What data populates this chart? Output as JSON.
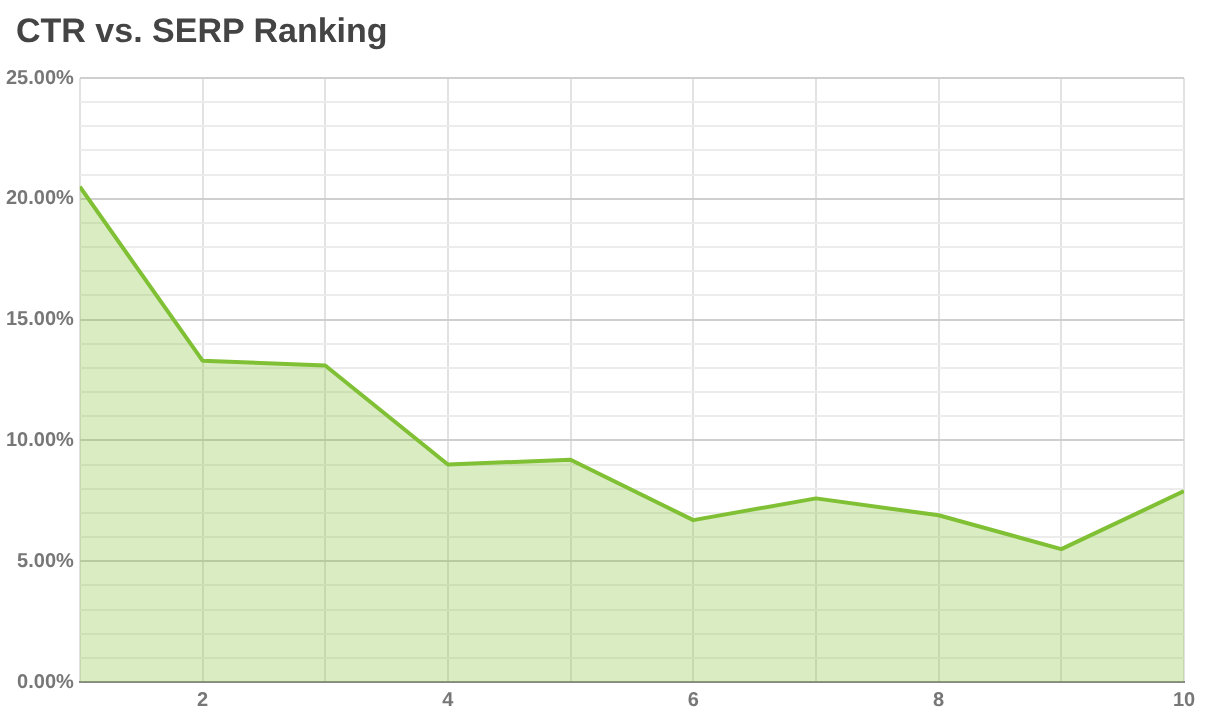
{
  "chart_data": {
    "type": "area",
    "title": "CTR vs. SERP Ranking",
    "x": [
      1,
      2,
      3,
      4,
      5,
      6,
      7,
      8,
      9,
      10
    ],
    "series": [
      {
        "color": "#80c034",
        "values": [
          20.5,
          13.3,
          13.1,
          9.0,
          9.2,
          6.7,
          7.6,
          6.9,
          5.5,
          7.9
        ]
      }
    ],
    "xlim": [
      1,
      10
    ],
    "xticks": [
      {
        "value": 1,
        "label": null
      },
      2,
      {
        "value": 3,
        "label": null
      },
      4,
      {
        "value": 5,
        "label": null
      },
      6,
      {
        "value": 7,
        "label": null
      },
      8,
      {
        "value": 9,
        "label": null
      },
      10
    ],
    "ylim": [
      0,
      25
    ],
    "yticks": [
      {
        "value": 0,
        "label": "0.00%"
      },
      {
        "value": 1,
        "label": null
      },
      {
        "value": 2,
        "label": null
      },
      {
        "value": 3,
        "label": null
      },
      {
        "value": 4,
        "label": null
      },
      {
        "value": 5,
        "label": "5.00%"
      },
      {
        "value": 6,
        "label": null
      },
      {
        "value": 7,
        "label": null
      },
      {
        "value": 8,
        "label": null
      },
      {
        "value": 9,
        "label": null
      },
      {
        "value": 10,
        "label": "10.00%"
      },
      {
        "value": 11,
        "label": null
      },
      {
        "value": 12,
        "label": null
      },
      {
        "value": 13,
        "label": null
      },
      {
        "value": 14,
        "label": null
      },
      {
        "value": 15,
        "label": "15.00%"
      },
      {
        "value": 16,
        "label": null
      },
      {
        "value": 17,
        "label": null
      },
      {
        "value": 18,
        "label": null
      },
      {
        "value": 19,
        "label": null
      },
      {
        "value": 20,
        "label": "20.00%"
      },
      {
        "value": 21,
        "label": null
      },
      {
        "value": 22,
        "label": null
      },
      {
        "value": 23,
        "label": null
      },
      {
        "value": 24,
        "label": null
      },
      {
        "value": 25,
        "label": "25.00%"
      }
    ],
    "grid": true
  }
}
